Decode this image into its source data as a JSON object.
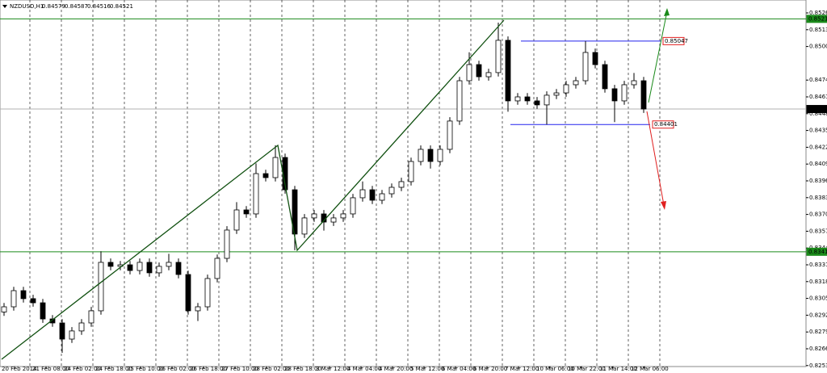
{
  "chart_data": {
    "type": "candlestick",
    "header": {
      "symbol": "NZDUSD,H1",
      "ohlc": [
        0.84579,
        0.84587,
        0.84516,
        0.84521
      ]
    },
    "x_labels": [
      "20 Feb 2014",
      "21 Feb 08:00",
      "24 Feb 02:00",
      "24 Feb 18:00",
      "25 Feb 10:00",
      "26 Feb 02:00",
      "26 Feb 18:00",
      "27 Feb 10:00",
      "28 Feb 02:00",
      "28 Feb 18:00",
      "3 Mar 12:00",
      "4 Mar 04:00",
      "4 Mar 20:00",
      "5 Mar 12:00",
      "6 Mar 04:00",
      "6 Mar 20:00",
      "7 Mar 12:00",
      "10 Mar 06:00",
      "10 Mar 22:00",
      "11 Mar 14:00",
      "12 Mar 06:00"
    ],
    "open": [
      0.8295,
      0.8299,
      0.83115,
      0.83053,
      0.83021,
      0.82896,
      0.82865,
      0.8274,
      0.82803,
      0.82865,
      0.82959,
      0.83334,
      0.83303,
      0.83315,
      0.83271,
      0.83334,
      0.83253,
      0.83303,
      0.83334,
      0.8324,
      0.82959,
      0.8299,
      0.83209,
      0.83365,
      0.83584,
      0.8374,
      0.83709,
      0.84021,
      0.8399,
      0.84146,
      0.83896,
      0.83553,
      0.83678,
      0.83709,
      0.83646,
      0.83678,
      0.83709,
      0.83834,
      0.83896,
      0.83815,
      0.83865,
      0.83915,
      0.83959,
      0.84115,
      0.84209,
      0.84115,
      0.84209,
      0.84428,
      0.8474,
      0.84865,
      0.84771,
      0.84803,
      0.85053,
      0.84584,
      0.84615,
      0.84584,
      0.84553,
      0.84628,
      0.84646,
      0.84709,
      0.8474,
      0.84959,
      0.84865,
      0.84678,
      0.84584,
      0.84709,
      0.8474
    ],
    "high": [
      0.8302,
      0.83145,
      0.83145,
      0.83083,
      0.83051,
      0.82926,
      0.82895,
      0.82833,
      0.82895,
      0.82989,
      0.8342,
      0.83364,
      0.83345,
      0.83345,
      0.83364,
      0.83364,
      0.83333,
      0.834,
      0.83364,
      0.8327,
      0.8302,
      0.83239,
      0.83395,
      0.83614,
      0.838,
      0.8377,
      0.841,
      0.84051,
      0.8424,
      0.84176,
      0.83926,
      0.83708,
      0.83739,
      0.83739,
      0.83708,
      0.83739,
      0.83864,
      0.8396,
      0.83926,
      0.83895,
      0.83945,
      0.83989,
      0.84145,
      0.84239,
      0.84239,
      0.84239,
      0.84458,
      0.8477,
      0.8496,
      0.84895,
      0.84833,
      0.8519,
      0.85083,
      0.84645,
      0.84645,
      0.84614,
      0.84658,
      0.84676,
      0.84739,
      0.8477,
      0.85047,
      0.84989,
      0.84895,
      0.84708,
      0.84739,
      0.848,
      0.8477
    ],
    "low": [
      0.8292,
      0.8296,
      0.83023,
      0.82991,
      0.82866,
      0.82835,
      0.82634,
      0.8271,
      0.82773,
      0.82835,
      0.82929,
      0.83273,
      0.83273,
      0.83241,
      0.83241,
      0.83223,
      0.83223,
      0.83273,
      0.8321,
      0.82929,
      0.8288,
      0.8296,
      0.83179,
      0.83335,
      0.83554,
      0.83679,
      0.83679,
      0.8396,
      0.8396,
      0.83866,
      0.83428,
      0.83523,
      0.83648,
      0.8358,
      0.83616,
      0.83648,
      0.83679,
      0.83804,
      0.83785,
      0.83785,
      0.83835,
      0.83885,
      0.83929,
      0.84085,
      0.8406,
      0.84085,
      0.84179,
      0.84398,
      0.8471,
      0.84741,
      0.84741,
      0.84773,
      0.845,
      0.84554,
      0.84554,
      0.84523,
      0.84401,
      0.84598,
      0.84616,
      0.84679,
      0.8471,
      0.84835,
      0.84648,
      0.8442,
      0.84554,
      0.84679,
      0.84491
    ],
    "close": [
      0.8299,
      0.83115,
      0.83053,
      0.83021,
      0.82896,
      0.82865,
      0.8274,
      0.82803,
      0.82865,
      0.82959,
      0.83334,
      0.83303,
      0.83315,
      0.83271,
      0.83334,
      0.83253,
      0.83303,
      0.83334,
      0.8324,
      0.82959,
      0.8299,
      0.83209,
      0.83365,
      0.83584,
      0.8374,
      0.83709,
      0.84021,
      0.8399,
      0.84146,
      0.83896,
      0.83553,
      0.83678,
      0.83709,
      0.83646,
      0.83678,
      0.83709,
      0.83834,
      0.83896,
      0.83815,
      0.83865,
      0.83915,
      0.83959,
      0.84115,
      0.84209,
      0.84115,
      0.84209,
      0.84428,
      0.8474,
      0.84865,
      0.84771,
      0.84803,
      0.85053,
      0.84584,
      0.84615,
      0.84584,
      0.84553,
      0.84628,
      0.84646,
      0.84709,
      0.8474,
      0.84959,
      0.84865,
      0.84678,
      0.84584,
      0.84709,
      0.8474,
      0.84521
    ],
    "ylim": [
      0.8253,
      0.85365
    ],
    "yticks": [
      0.85265,
      0.85135,
      0.85005,
      0.84745,
      0.84615,
      0.84485,
      0.84355,
      0.84225,
      0.84095,
      0.83965,
      0.83835,
      0.83705,
      0.83575,
      0.83445,
      0.83315,
      0.83185,
      0.83055,
      0.82925,
      0.82795,
      0.82665,
      0.82535
    ],
    "levels": [
      {
        "value": 0.85219,
        "color": "#1a8a1a"
      },
      {
        "value": 0.83416,
        "color": "#1a8a1a"
      }
    ],
    "current_price": 0.84521,
    "range_levels": [
      {
        "value": 0.85047,
        "color": "#2222ee"
      },
      {
        "value": 0.84401,
        "color": "#2222ee"
      }
    ],
    "grid": true
  }
}
